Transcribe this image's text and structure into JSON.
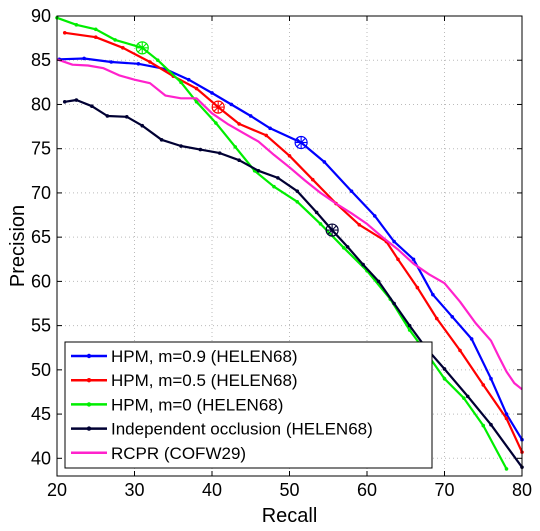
{
  "chart_data": {
    "type": "line",
    "xlabel": "Recall",
    "ylabel": "Precision",
    "xlim": [
      20,
      80
    ],
    "ylim": [
      38,
      90
    ],
    "xticks": [
      20,
      30,
      40,
      50,
      60,
      70,
      80
    ],
    "yticks": [
      40,
      45,
      50,
      55,
      60,
      65,
      70,
      75,
      80,
      85,
      90
    ],
    "grid": true,
    "legend_position": "bottom-left",
    "series": [
      {
        "name": "HPM, m=0.9 (HELEN68)",
        "color": "#0000ff",
        "marker": "dot",
        "points": [
          [
            20.3,
            85.1
          ],
          [
            23.5,
            85.2
          ],
          [
            27,
            84.8
          ],
          [
            30.5,
            84.6
          ],
          [
            34,
            84
          ],
          [
            37,
            82.8
          ],
          [
            40,
            81.3
          ],
          [
            42.5,
            80
          ],
          [
            45,
            78.7
          ],
          [
            47.5,
            77.3
          ],
          [
            51.5,
            75.7
          ],
          [
            54.5,
            73.5
          ],
          [
            58,
            70.2
          ],
          [
            61,
            67.4
          ],
          [
            63.5,
            64.5
          ],
          [
            66,
            62.5
          ],
          [
            68.5,
            58.5
          ],
          [
            71,
            56
          ],
          [
            73.5,
            53.5
          ],
          [
            76,
            49
          ],
          [
            78,
            45
          ],
          [
            80,
            42.1
          ]
        ],
        "highlight": {
          "x": 51.5,
          "y": 75.7
        }
      },
      {
        "name": "HPM, m=0.5 (HELEN68)",
        "color": "#ff0000",
        "marker": "dot",
        "points": [
          [
            21,
            88.1
          ],
          [
            25,
            87.6
          ],
          [
            28.5,
            86.4
          ],
          [
            32,
            84.8
          ],
          [
            35,
            83.2
          ],
          [
            38,
            81.8
          ],
          [
            40.8,
            79.7
          ],
          [
            43.5,
            77.8
          ],
          [
            47,
            76.5
          ],
          [
            50,
            74.2
          ],
          [
            53,
            71.5
          ],
          [
            56,
            68.8
          ],
          [
            59,
            66.4
          ],
          [
            62.5,
            64.5
          ],
          [
            64,
            62.5
          ],
          [
            66.5,
            59.3
          ],
          [
            69,
            55.8
          ],
          [
            72,
            52.2
          ],
          [
            75,
            48.3
          ],
          [
            78,
            44.5
          ],
          [
            80,
            40.7
          ]
        ],
        "highlight": {
          "x": 40.8,
          "y": 79.7
        }
      },
      {
        "name": "HPM, m=0 (HELEN68)",
        "color": "#00ee00",
        "marker": "dot",
        "points": [
          [
            20,
            89.8
          ],
          [
            22.5,
            89
          ],
          [
            25,
            88.5
          ],
          [
            27.5,
            87.3
          ],
          [
            31,
            86.4
          ],
          [
            33,
            85
          ],
          [
            36,
            82.5
          ],
          [
            38,
            80.3
          ],
          [
            40.5,
            77.9
          ],
          [
            43,
            75.2
          ],
          [
            45.5,
            72.5
          ],
          [
            48,
            70.7
          ],
          [
            51,
            69
          ],
          [
            54,
            66.5
          ],
          [
            57,
            63.8
          ],
          [
            60,
            61.2
          ],
          [
            63,
            58
          ],
          [
            65.5,
            54.5
          ],
          [
            68,
            51.5
          ],
          [
            70,
            49
          ],
          [
            72.5,
            46.8
          ],
          [
            75,
            43.7
          ],
          [
            78,
            38.8
          ]
        ],
        "highlight": {
          "x": 31,
          "y": 86.4
        }
      },
      {
        "name": "Independent occlusion (HELEN68)",
        "color": "#000033",
        "marker": "dot",
        "points": [
          [
            21,
            80.3
          ],
          [
            22.5,
            80.5
          ],
          [
            24.5,
            79.8
          ],
          [
            26.5,
            78.7
          ],
          [
            29,
            78.6
          ],
          [
            31,
            77.6
          ],
          [
            33.5,
            76
          ],
          [
            36,
            75.3
          ],
          [
            38.5,
            74.9
          ],
          [
            41,
            74.5
          ],
          [
            43.5,
            73.7
          ],
          [
            46,
            72.5
          ],
          [
            48.5,
            71.7
          ],
          [
            51,
            70.2
          ],
          [
            53.5,
            67.8
          ],
          [
            55.5,
            65.8
          ],
          [
            57.5,
            63.9
          ],
          [
            59.5,
            61.9
          ],
          [
            61.5,
            60
          ],
          [
            63.5,
            57.5
          ],
          [
            65.5,
            55
          ],
          [
            67.5,
            52.6
          ],
          [
            70,
            50.1
          ],
          [
            73,
            47
          ],
          [
            76,
            43.8
          ],
          [
            80,
            39
          ]
        ],
        "highlight": {
          "x": 55.5,
          "y": 65.8
        }
      },
      {
        "name": "RCPR (COFW29)",
        "color": "#ff22cc",
        "marker": "none",
        "points": [
          [
            20,
            85.1
          ],
          [
            22,
            84.5
          ],
          [
            24,
            84.4
          ],
          [
            26,
            84.1
          ],
          [
            28,
            83.3
          ],
          [
            30,
            82.8
          ],
          [
            32,
            82.4
          ],
          [
            34,
            81
          ],
          [
            36,
            80.7
          ],
          [
            38,
            80.7
          ],
          [
            40,
            79
          ],
          [
            42,
            77.8
          ],
          [
            44,
            76.8
          ],
          [
            46,
            75.8
          ],
          [
            48,
            74.3
          ],
          [
            50,
            72.9
          ],
          [
            52,
            71.4
          ],
          [
            54,
            70
          ],
          [
            56,
            68.8
          ],
          [
            58,
            67.7
          ],
          [
            60,
            66.5
          ],
          [
            62,
            65
          ],
          [
            64,
            63.6
          ],
          [
            66,
            62
          ],
          [
            68,
            60.8
          ],
          [
            70,
            59.8
          ],
          [
            72,
            57.7
          ],
          [
            74,
            55.3
          ],
          [
            76,
            53.3
          ],
          [
            77,
            51.5
          ],
          [
            78,
            49.8
          ],
          [
            79,
            48.5
          ],
          [
            80,
            47.8
          ]
        ]
      }
    ]
  }
}
